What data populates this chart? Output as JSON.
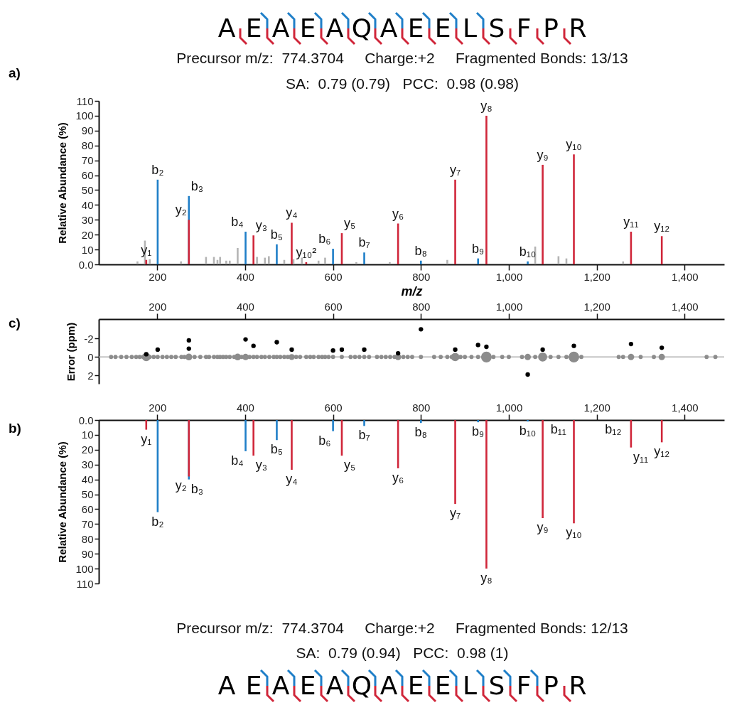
{
  "chart_data": [
    {
      "type": "bar",
      "title": "A E A E A Q A E E L S F P R",
      "subtitle": "Precursor m/z:  774.3704     Charge:+2     Fragmented Bonds: 13/13",
      "annotations": [
        "SA:  0.79 (0.79)   PCC:  0.98 (0.98)",
        "a)"
      ],
      "xlabel": "m/z",
      "ylabel": "Relative Abundance (%)",
      "xlim": [
        67,
        1490
      ],
      "xticks": [
        200,
        400,
        600,
        800,
        {
          "value": 1000,
          "label": "1,000"
        },
        {
          "value": 1200,
          "label": "1,200"
        },
        {
          "value": 1400,
          "label": "1,400"
        }
      ],
      "ylim": [
        0,
        110
      ],
      "yticks": [
        {
          "value": 0,
          "label": "0.0"
        },
        10,
        20,
        30,
        40,
        50,
        60,
        70,
        80,
        90,
        100,
        110
      ],
      "series": [
        {
          "color": "#b4b4b4",
          "x": [
            155,
            172,
            183,
            254,
            311,
            329,
            337,
            343,
            357,
            365,
            383,
            427,
            445,
            454,
            489,
            510,
            529,
            567,
            582,
            653,
            729,
            860,
            1060,
            1113,
            1131,
            1260
          ],
          "values": [
            2,
            16,
            3.5,
            2,
            5,
            5,
            3,
            5,
            2.5,
            2.5,
            11,
            5,
            4.5,
            5.5,
            3,
            3.5,
            4.5,
            2.5,
            4.5,
            1.5,
            1.5,
            3,
            12,
            5.5,
            4,
            2
          ]
        },
        {
          "color": "#1f7fc8",
          "x": [
            201,
            272,
            401,
            472,
            600,
            671,
            800,
            930,
            1043
          ],
          "values": [
            57,
            46,
            22,
            13.5,
            10.5,
            8,
            2.5,
            4,
            2
          ],
          "value_labels": [
            "b₂",
            "b₃",
            "b₄",
            "b₅",
            "b₆",
            "b₇",
            "b₈",
            "b₉",
            "b₁₀"
          ]
        },
        {
          "color": "#d0263a",
          "x": [
            175,
            272,
            419,
            506,
            539,
            620,
            748,
            878,
            949,
            1077,
            1148,
            1278,
            1348
          ],
          "values": [
            3,
            30,
            19.5,
            28,
            1.5,
            21,
            27.5,
            57,
            100,
            67,
            74,
            22,
            19
          ],
          "value_labels": [
            "y₁",
            "y₂",
            "y₃",
            "y₄",
            "y₁₀²",
            "y₅",
            "y₆",
            "y₇",
            "y₈",
            "y₉",
            "y₁₀",
            "y₁₁",
            "y₁₂"
          ]
        }
      ]
    },
    {
      "type": "scatter",
      "annotations": [
        "c)"
      ],
      "ylabel": "Error (ppm)",
      "xlim": [
        67,
        1490
      ],
      "xticks": [
        200,
        400,
        600,
        800,
        {
          "value": 1000,
          "label": "1,000"
        },
        {
          "value": 1200,
          "label": "1,200"
        },
        {
          "value": 1400,
          "label": "1,400"
        }
      ],
      "ylim": [
        2.9,
        -4.1
      ],
      "yticks": [
        -2,
        0,
        2
      ],
      "marker": "circle",
      "ref_lines": [
        {
          "axis": "y",
          "value": 0,
          "color": "#b0b0b0"
        }
      ],
      "series": [
        {
          "type": "bubble",
          "color": "#8c8c8c",
          "x": [
            95,
            105,
            118,
            130,
            142,
            152,
            160,
            168,
            175,
            183,
            192,
            201,
            212,
            222,
            232,
            242,
            255,
            262,
            272,
            285,
            298,
            311,
            318,
            329,
            337,
            343,
            350,
            357,
            365,
            375,
            383,
            392,
            401,
            410,
            419,
            427,
            437,
            445,
            455,
            465,
            472,
            480,
            489,
            497,
            506,
            516,
            525,
            539,
            548,
            556,
            567,
            575,
            582,
            590,
            600,
            620,
            640,
            650,
            660,
            671,
            682,
            700,
            710,
            720,
            730,
            740,
            748,
            760,
            770,
            780,
            800,
            830,
            845,
            860,
            870,
            878,
            890,
            900,
            915,
            930,
            949,
            965,
            985,
            1000,
            1030,
            1043,
            1060,
            1077,
            1095,
            1113,
            1131,
            1148,
            1165,
            1250,
            1260,
            1278,
            1300,
            1330,
            1348,
            1450,
            1470
          ],
          "values": [
            0,
            0,
            0,
            0,
            0,
            0,
            0,
            0,
            0,
            0,
            0,
            0,
            0,
            0,
            0,
            0,
            0,
            0,
            0,
            0,
            0,
            0,
            0,
            0,
            0,
            0,
            0,
            0,
            0,
            0,
            0,
            0,
            0,
            0,
            0,
            0,
            0,
            0,
            0,
            0,
            0,
            0,
            0,
            0,
            0,
            0,
            0,
            0,
            0,
            0,
            0,
            0,
            0,
            0,
            0,
            0,
            0,
            0,
            0,
            0,
            0,
            0,
            0,
            0,
            0,
            0,
            0,
            0,
            0,
            0,
            0,
            0,
            0,
            0,
            0,
            0,
            0,
            0,
            0,
            0,
            0,
            0,
            0,
            0,
            0,
            0,
            0,
            0,
            0,
            0,
            0,
            0,
            0,
            0,
            0,
            0,
            0,
            0,
            0,
            0,
            0
          ],
          "sizes": [
            0.15,
            0.15,
            0.15,
            0.15,
            0.15,
            0.15,
            0.15,
            0.15,
            0.6,
            0.15,
            0.15,
            0.15,
            0.15,
            0.15,
            0.15,
            0.15,
            0.15,
            0.15,
            0.4,
            0.15,
            0.15,
            0.15,
            0.15,
            0.15,
            0.15,
            0.15,
            0.15,
            0.15,
            0.15,
            0.15,
            0.4,
            0.15,
            0.35,
            0.15,
            0.15,
            0.15,
            0.15,
            0.15,
            0.15,
            0.15,
            0.15,
            0.15,
            0.15,
            0.15,
            0.3,
            0.15,
            0.15,
            0.15,
            0.15,
            0.15,
            0.15,
            0.15,
            0.15,
            0.15,
            0.15,
            0.15,
            0.15,
            0.15,
            0.15,
            0.15,
            0.15,
            0.15,
            0.15,
            0.15,
            0.15,
            0.15,
            0.35,
            0.15,
            0.15,
            0.15,
            0.15,
            0.15,
            0.15,
            0.15,
            0.15,
            0.6,
            0.15,
            0.15,
            0.15,
            0.15,
            1,
            0.15,
            0.15,
            0.15,
            0.15,
            0.35,
            0.15,
            0.7,
            0.15,
            0.15,
            0.15,
            1,
            0.15,
            0.15,
            0.15,
            0.35,
            0.15,
            0.15,
            0.35,
            0.15,
            0.15
          ]
        },
        {
          "color": "#000000",
          "x": [
            175,
            201,
            272,
            272,
            401,
            419,
            472,
            506,
            600,
            620,
            671,
            748,
            800,
            878,
            930,
            949,
            1043,
            1077,
            1148,
            1278,
            1348
          ],
          "values": [
            -0.3,
            -0.8,
            -1.8,
            -0.9,
            -1.9,
            -1.2,
            -1.6,
            -0.8,
            -0.7,
            -0.8,
            -0.8,
            -0.4,
            -3,
            -0.8,
            -1.3,
            -1.1,
            1.9,
            -0.8,
            -1.2,
            -1.4,
            -1
          ]
        }
      ]
    },
    {
      "type": "bar",
      "title": "A E A E A Q A E E L S F P R",
      "subtitle": "Precursor m/z:  774.3704     Charge:+2     Fragmented Bonds: 12/13",
      "annotations": [
        "SA:  0.79 (0.94)   PCC:  0.98 (1)",
        "b)"
      ],
      "ylabel": "Relative Abundance (%)",
      "xlim": [
        67,
        1490
      ],
      "xticks": [
        200,
        400,
        600,
        800,
        {
          "value": 1000,
          "label": "1,000"
        },
        {
          "value": 1200,
          "label": "1,200"
        },
        {
          "value": 1400,
          "label": "1,400"
        }
      ],
      "ylim": [
        110,
        0
      ],
      "yticks": [
        {
          "value": 0,
          "label": "0.0"
        },
        10,
        20,
        30,
        40,
        50,
        60,
        70,
        80,
        90,
        100,
        110
      ],
      "series": [
        {
          "color": "#1f7fc8",
          "x": [
            201,
            272,
            401,
            472,
            600,
            671,
            800,
            930,
            1043,
            1113,
            1261
          ],
          "values": [
            62,
            40,
            21,
            13.5,
            7.5,
            4,
            2,
            1.5,
            1,
            0,
            0
          ],
          "value_labels": [
            "b₂",
            "b₃",
            "b₄",
            "b₅",
            "b₆",
            "b₇",
            "b₈",
            "b₉",
            "b₁₀",
            "b₁₁",
            "b₁₂"
          ]
        },
        {
          "color": "#d0263a",
          "x": [
            175,
            272,
            419,
            506,
            620,
            748,
            878,
            949,
            1077,
            1148,
            1278,
            1348
          ],
          "values": [
            6.5,
            38,
            24,
            33.5,
            24,
            32.5,
            56.5,
            100,
            66,
            69.5,
            18.5,
            15
          ],
          "value_labels": [
            "y₁",
            "y₂",
            "y₃",
            "y₄",
            "y₅",
            "y₆",
            "y₇",
            "y₈",
            "y₉",
            "y₁₀",
            "y₁₁",
            "y₁₂"
          ]
        }
      ]
    }
  ]
}
